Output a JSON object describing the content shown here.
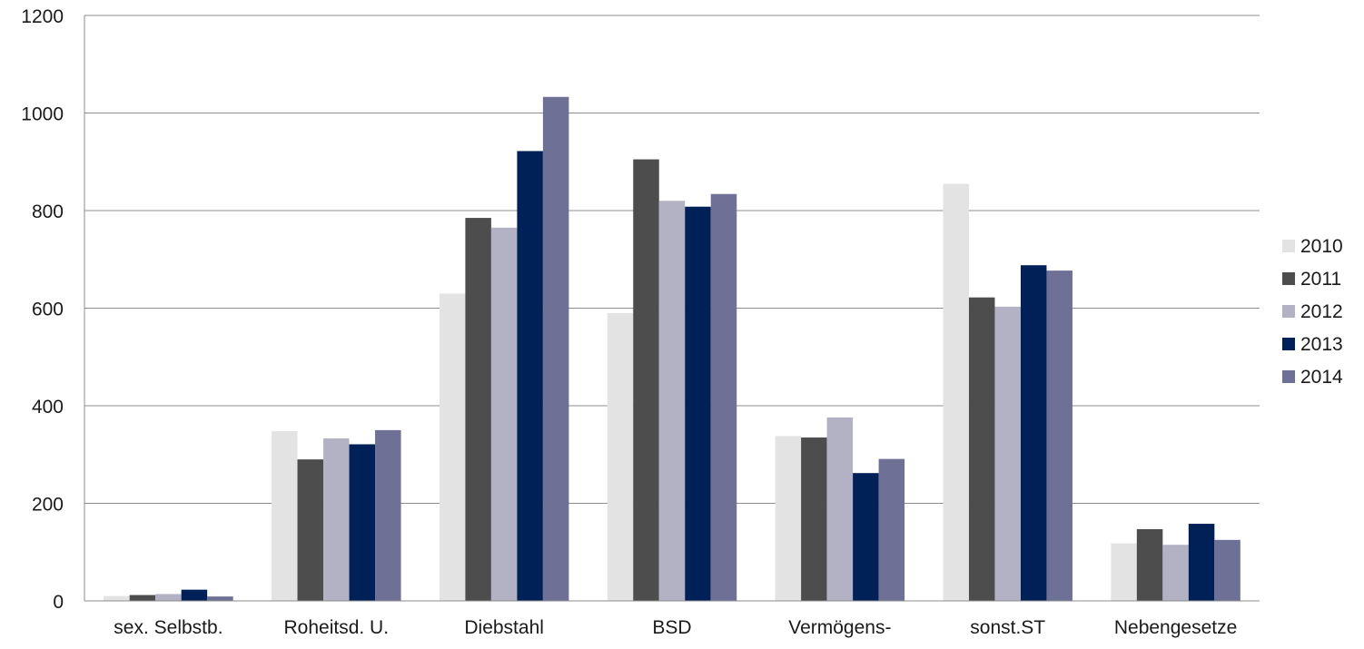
{
  "chart_data": {
    "type": "bar",
    "title": "",
    "xlabel": "",
    "ylabel": "",
    "ylim": [
      0,
      1200
    ],
    "yticks": [
      0,
      200,
      400,
      600,
      800,
      1000,
      1200
    ],
    "grid": true,
    "legend_position": "right",
    "categories": [
      "sex. Selbstb.",
      "Roheitsd. U.",
      "Diebstahl",
      "BSD",
      "Vermögens-",
      "sonst.ST",
      "Nebengesetze"
    ],
    "series": [
      {
        "name": "2010",
        "color": "#e3e3e3",
        "values": [
          10,
          348,
          630,
          590,
          338,
          855,
          118
        ]
      },
      {
        "name": "2011",
        "color": "#4d4d4d",
        "values": [
          12,
          290,
          785,
          905,
          335,
          622,
          147
        ]
      },
      {
        "name": "2012",
        "color": "#b2b2c4",
        "values": [
          14,
          333,
          765,
          820,
          376,
          603,
          115
        ]
      },
      {
        "name": "2013",
        "color": "#002157",
        "values": [
          23,
          321,
          922,
          808,
          262,
          688,
          158
        ]
      },
      {
        "name": "2014",
        "color": "#6e7096",
        "values": [
          9,
          350,
          1033,
          834,
          291,
          677,
          125
        ]
      }
    ]
  }
}
